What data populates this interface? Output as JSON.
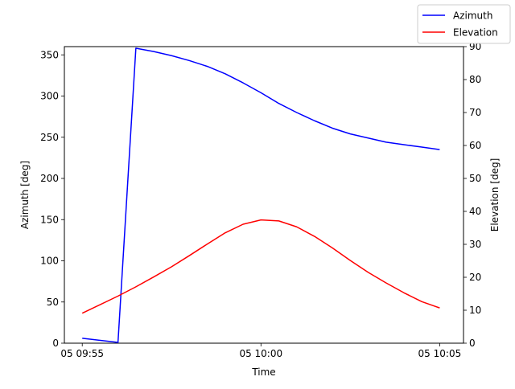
{
  "chart_data": {
    "type": "line",
    "xlabel": "Time",
    "ylabel_left": "Azimuth [deg]",
    "ylabel_right": "Elevation [deg]",
    "x_ticks": [
      "05 09:55",
      "05 10:00",
      "05 10:05"
    ],
    "y_left_ticks": [
      "0",
      "50",
      "100",
      "150",
      "200",
      "250",
      "300",
      "350"
    ],
    "y_right_ticks": [
      "0",
      "10",
      "20",
      "30",
      "40",
      "50",
      "60",
      "70",
      "80",
      "90"
    ],
    "x_range": [
      "09:54:30",
      "10:05:40"
    ],
    "y_left_range": [
      0,
      360
    ],
    "y_right_range": [
      0,
      90
    ],
    "legend_position": "top-right (outside axes)",
    "grid": false,
    "colors": {
      "azimuth": "#0000ff",
      "elevation": "#ff0000"
    },
    "x": [
      "09:55:00",
      "09:56:00",
      "09:56:30",
      "09:57:00",
      "09:57:30",
      "09:58:00",
      "09:58:30",
      "09:59:00",
      "09:59:30",
      "10:00:00",
      "10:00:30",
      "10:01:00",
      "10:01:30",
      "10:02:00",
      "10:02:30",
      "10:03:00",
      "10:03:30",
      "10:04:00",
      "10:04:30",
      "10:05:00"
    ],
    "series": [
      {
        "name": "Azimuth",
        "axis": "left",
        "x": [
          "09:55:00",
          "09:56:00",
          "09:56:30",
          "09:57:00",
          "09:57:30",
          "09:58:00",
          "09:58:30",
          "09:59:00",
          "09:59:30",
          "10:00:00",
          "10:00:30",
          "10:01:00",
          "10:01:30",
          "10:02:00",
          "10:02:30",
          "10:03:00",
          "10:03:30",
          "10:04:00",
          "10:04:30",
          "10:05:00"
        ],
        "values": [
          6,
          1,
          358,
          354,
          349,
          343,
          336,
          327,
          316,
          304,
          291,
          280,
          270,
          261,
          254,
          249,
          244,
          241,
          238,
          235
        ]
      },
      {
        "name": "Elevation",
        "axis": "right",
        "x": [
          "09:55:00",
          "09:55:30",
          "09:56:00",
          "09:56:30",
          "09:57:00",
          "09:57:30",
          "09:58:00",
          "09:58:30",
          "09:59:00",
          "09:59:30",
          "10:00:00",
          "10:00:30",
          "10:01:00",
          "10:01:30",
          "10:02:00",
          "10:02:30",
          "10:03:00",
          "10:03:30",
          "10:04:00",
          "10:04:30",
          "10:05:00"
        ],
        "values": [
          9.1,
          11.7,
          14.3,
          17.1,
          20.1,
          23.2,
          26.6,
          30.1,
          33.5,
          36.1,
          37.4,
          37.1,
          35.3,
          32.4,
          28.9,
          25.1,
          21.5,
          18.3,
          15.3,
          12.6,
          10.7
        ]
      }
    ]
  }
}
